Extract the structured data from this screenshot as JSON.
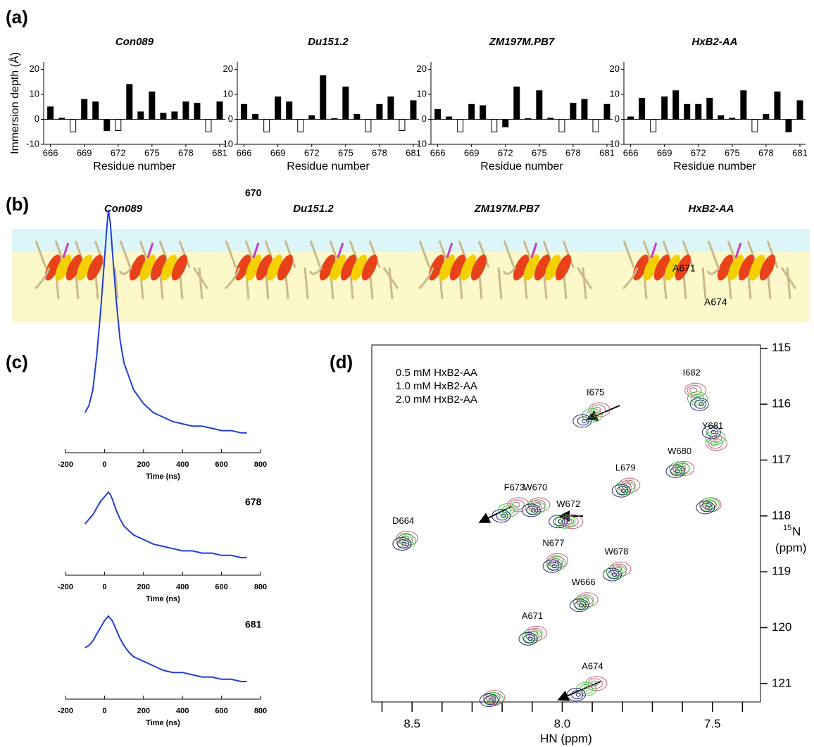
{
  "panel_labels": [
    "(a)",
    "(b)",
    "(c)",
    "(d)"
  ],
  "structures": {
    "titles": [
      "Con089",
      "Du151.2",
      "ZM197M.PB7",
      "HxB2-AA"
    ],
    "annotations": [
      "A671",
      "A674"
    ]
  },
  "chart_data": [
    {
      "type": "bar",
      "title": "Con089",
      "y_label": "Immersion depth (Å)",
      "x_label": "Residue number",
      "x": [
        666,
        667,
        668,
        669,
        670,
        671,
        672,
        673,
        674,
        675,
        676,
        677,
        678,
        679,
        680,
        681
      ],
      "values": [
        5,
        0.5,
        -5,
        8,
        7,
        -4.5,
        -4.5,
        14,
        3,
        11,
        2.5,
        3,
        7,
        6.5,
        -5,
        7
      ],
      "colors": [
        "#000000",
        "#000000",
        "#ffffff",
        "#000000",
        "#000000",
        "#000000",
        "#ffffff",
        "#000000",
        "#000000",
        "#000000",
        "#000000",
        "#000000",
        "#000000",
        "#000000",
        "#ffffff",
        "#000000"
      ],
      "xlim": [
        665.4,
        681.5
      ],
      "xticks": [
        666,
        669,
        672,
        675,
        678,
        681
      ],
      "ylim": [
        -10,
        23
      ],
      "yticks": [
        -10,
        0,
        10,
        20
      ]
    },
    {
      "type": "bar",
      "title": "Du151.2",
      "x_label": "Residue number",
      "x": [
        666,
        667,
        668,
        669,
        670,
        671,
        672,
        673,
        674,
        675,
        676,
        677,
        678,
        679,
        680,
        681
      ],
      "values": [
        6,
        2,
        -5,
        9,
        7,
        -5,
        1.5,
        17.5,
        0.3,
        13,
        2,
        -5,
        6,
        9,
        -4.5,
        7.5
      ],
      "colors": [
        "#000000",
        "#000000",
        "#ffffff",
        "#000000",
        "#000000",
        "#ffffff",
        "#000000",
        "#000000",
        "#000000",
        "#000000",
        "#000000",
        "#ffffff",
        "#000000",
        "#000000",
        "#ffffff",
        "#000000"
      ],
      "xlim": [
        665.4,
        681.5
      ],
      "xticks": [
        666,
        669,
        672,
        675,
        678,
        681
      ],
      "ylim": [
        -10,
        23
      ],
      "yticks": [
        -10,
        0,
        10,
        20
      ]
    },
    {
      "type": "bar",
      "title": "ZM197M.PB7",
      "x_label": "Residue number",
      "x": [
        666,
        667,
        668,
        669,
        670,
        671,
        672,
        673,
        674,
        675,
        676,
        677,
        678,
        679,
        680,
        681
      ],
      "values": [
        4,
        1,
        -5,
        6,
        5.5,
        -5,
        -3,
        13,
        0.3,
        11.5,
        0.5,
        -5,
        6.5,
        8,
        -5,
        6
      ],
      "colors": [
        "#000000",
        "#000000",
        "#ffffff",
        "#000000",
        "#000000",
        "#ffffff",
        "#000000",
        "#000000",
        "#000000",
        "#000000",
        "#000000",
        "#ffffff",
        "#000000",
        "#000000",
        "#ffffff",
        "#000000"
      ],
      "xlim": [
        665.4,
        681.5
      ],
      "xticks": [
        666,
        669,
        672,
        675,
        678,
        681
      ],
      "ylim": [
        -10,
        23
      ],
      "yticks": [
        -10,
        0,
        10,
        20
      ]
    },
    {
      "type": "bar",
      "title": "HxB2-AA",
      "x_label": "Residue number",
      "x": [
        666,
        667,
        668,
        669,
        670,
        671,
        672,
        673,
        674,
        675,
        676,
        677,
        678,
        679,
        680,
        681
      ],
      "values": [
        1,
        8.5,
        -5,
        9,
        11.5,
        6,
        6,
        8.5,
        1.5,
        0.5,
        11.5,
        -5,
        2,
        11,
        -5,
        7.5
      ],
      "colors": [
        "#000000",
        "#000000",
        "#ffffff",
        "#000000",
        "#000000",
        "#000000",
        "#000000",
        "#000000",
        "#000000",
        "#000000",
        "#000000",
        "#ffffff",
        "#000000",
        "#000000",
        "#000000",
        "#000000"
      ],
      "xlim": [
        665.4,
        681.5
      ],
      "xticks": [
        666,
        669,
        672,
        675,
        678,
        681
      ],
      "ylim": [
        -10,
        23
      ],
      "yticks": [
        -10,
        0,
        10,
        20
      ]
    },
    {
      "type": "line",
      "label": "670",
      "x_label": "Time (ns)",
      "color": "#1f3fd6",
      "x": [
        -100,
        -80,
        -60,
        -40,
        -20,
        0,
        10,
        20,
        30,
        40,
        60,
        80,
        100,
        125,
        150,
        175,
        200,
        250,
        300,
        350,
        400,
        450,
        500,
        550,
        600,
        650,
        700,
        730
      ],
      "values": [
        0.1,
        0.13,
        0.2,
        0.35,
        0.55,
        0.78,
        0.9,
        1.0,
        0.94,
        0.82,
        0.6,
        0.42,
        0.32,
        0.26,
        0.2,
        0.17,
        0.14,
        0.1,
        0.08,
        0.06,
        0.05,
        0.04,
        0.04,
        0.03,
        0.02,
        0.02,
        0.01,
        0.01
      ],
      "xlim": [
        -200,
        800
      ],
      "xticks": [
        -200,
        0,
        200,
        400,
        600,
        800
      ]
    },
    {
      "type": "line",
      "label": "678",
      "x_label": "Time (ns)",
      "color": "#1f3fd6",
      "x": [
        -100,
        -80,
        -60,
        -40,
        -20,
        0,
        10,
        20,
        30,
        40,
        60,
        80,
        100,
        125,
        150,
        175,
        200,
        250,
        300,
        350,
        400,
        450,
        500,
        550,
        600,
        650,
        700,
        730
      ],
      "values": [
        0.15,
        0.17,
        0.19,
        0.22,
        0.25,
        0.27,
        0.28,
        0.29,
        0.28,
        0.26,
        0.21,
        0.17,
        0.14,
        0.12,
        0.1,
        0.09,
        0.08,
        0.06,
        0.05,
        0.04,
        0.03,
        0.03,
        0.02,
        0.02,
        0.01,
        0.01,
        0,
        0
      ],
      "xlim": [
        -200,
        800
      ],
      "xticks": [
        -200,
        0,
        200,
        400,
        600,
        800
      ]
    },
    {
      "type": "line",
      "label": "681",
      "x_label": "Time (ns)",
      "color": "#1f3fd6",
      "x": [
        -100,
        -80,
        -60,
        -40,
        -20,
        0,
        10,
        20,
        30,
        40,
        60,
        80,
        100,
        125,
        150,
        175,
        200,
        250,
        300,
        350,
        400,
        450,
        500,
        550,
        600,
        650,
        700,
        730
      ],
      "values": [
        0.15,
        0.16,
        0.18,
        0.21,
        0.24,
        0.27,
        0.28,
        0.29,
        0.28,
        0.27,
        0.23,
        0.19,
        0.16,
        0.13,
        0.11,
        0.1,
        0.09,
        0.07,
        0.05,
        0.04,
        0.04,
        0.03,
        0.02,
        0.02,
        0.01,
        0.01,
        0,
        0
      ],
      "xlim": [
        -200,
        800
      ],
      "xticks": [
        -200,
        0,
        200,
        400,
        600,
        800
      ]
    },
    {
      "type": "scatter",
      "x_label": "HN (ppm)",
      "y_label_superscript": "15",
      "y_label": "N",
      "y_label_unit": "(ppm)",
      "xlim": [
        8.634,
        7.34
      ],
      "xticks": [
        8.5,
        {
          "value": 8,
          "label": "8.0"
        },
        7.5
      ],
      "xminor_ticks": [
        8.6,
        8.4,
        8.3,
        8.2,
        8.1,
        7.9,
        7.8,
        7.7,
        7.6,
        7.4
      ],
      "ylim": [
        114.94,
        121.33
      ],
      "yticks": [
        115,
        116,
        117,
        118,
        119,
        120,
        121
      ],
      "peak_labels": [
        "D664",
        "F673",
        "W670",
        "W672",
        "I675",
        "I682",
        "Y681",
        "W680",
        "L679",
        "N677",
        "W678",
        "A671",
        "W666",
        "A674",
        null,
        null
      ],
      "series": [
        {
          "name": "0.5 mM HxB2-AA",
          "color": "#c0607a",
          "x": [
            8.52,
            8.15,
            8.08,
            7.97,
            7.88,
            7.56,
            7.49,
            7.6,
            7.78,
            8.02,
            7.81,
            8.09,
            7.92,
            7.89,
            8.23,
            7.51
          ],
          "values": [
            118.4,
            117.8,
            117.8,
            118.1,
            116.1,
            115.75,
            116.7,
            117.15,
            117.45,
            118.8,
            118.95,
            120.1,
            119.5,
            121.0,
            121.25,
            117.8
          ]
        },
        {
          "name": "1.0 mM HxB2-AA",
          "color": "#3cc83c",
          "x": [
            8.52,
            8.18,
            8.09,
            7.99,
            7.9,
            7.55,
            7.49,
            7.61,
            7.79,
            8.02,
            7.82,
            8.1,
            7.93,
            7.92,
            8.23,
            7.51
          ],
          "values": [
            118.45,
            117.9,
            117.85,
            118.1,
            116.2,
            115.9,
            116.6,
            117.15,
            117.5,
            118.85,
            119.0,
            120.15,
            119.55,
            121.1,
            121.28,
            117.8
          ]
        },
        {
          "name": "2.0 mM HxB2-AA",
          "color": "#2a2a70",
          "x": [
            8.53,
            8.2,
            8.1,
            8.01,
            7.93,
            7.54,
            7.5,
            7.62,
            7.8,
            8.03,
            7.83,
            8.11,
            7.94,
            7.95,
            8.24,
            7.52
          ],
          "values": [
            118.5,
            118.0,
            117.9,
            118.1,
            116.3,
            116.0,
            116.5,
            117.2,
            117.55,
            118.9,
            119.05,
            120.2,
            119.6,
            121.2,
            121.3,
            117.85
          ]
        }
      ]
    }
  ]
}
